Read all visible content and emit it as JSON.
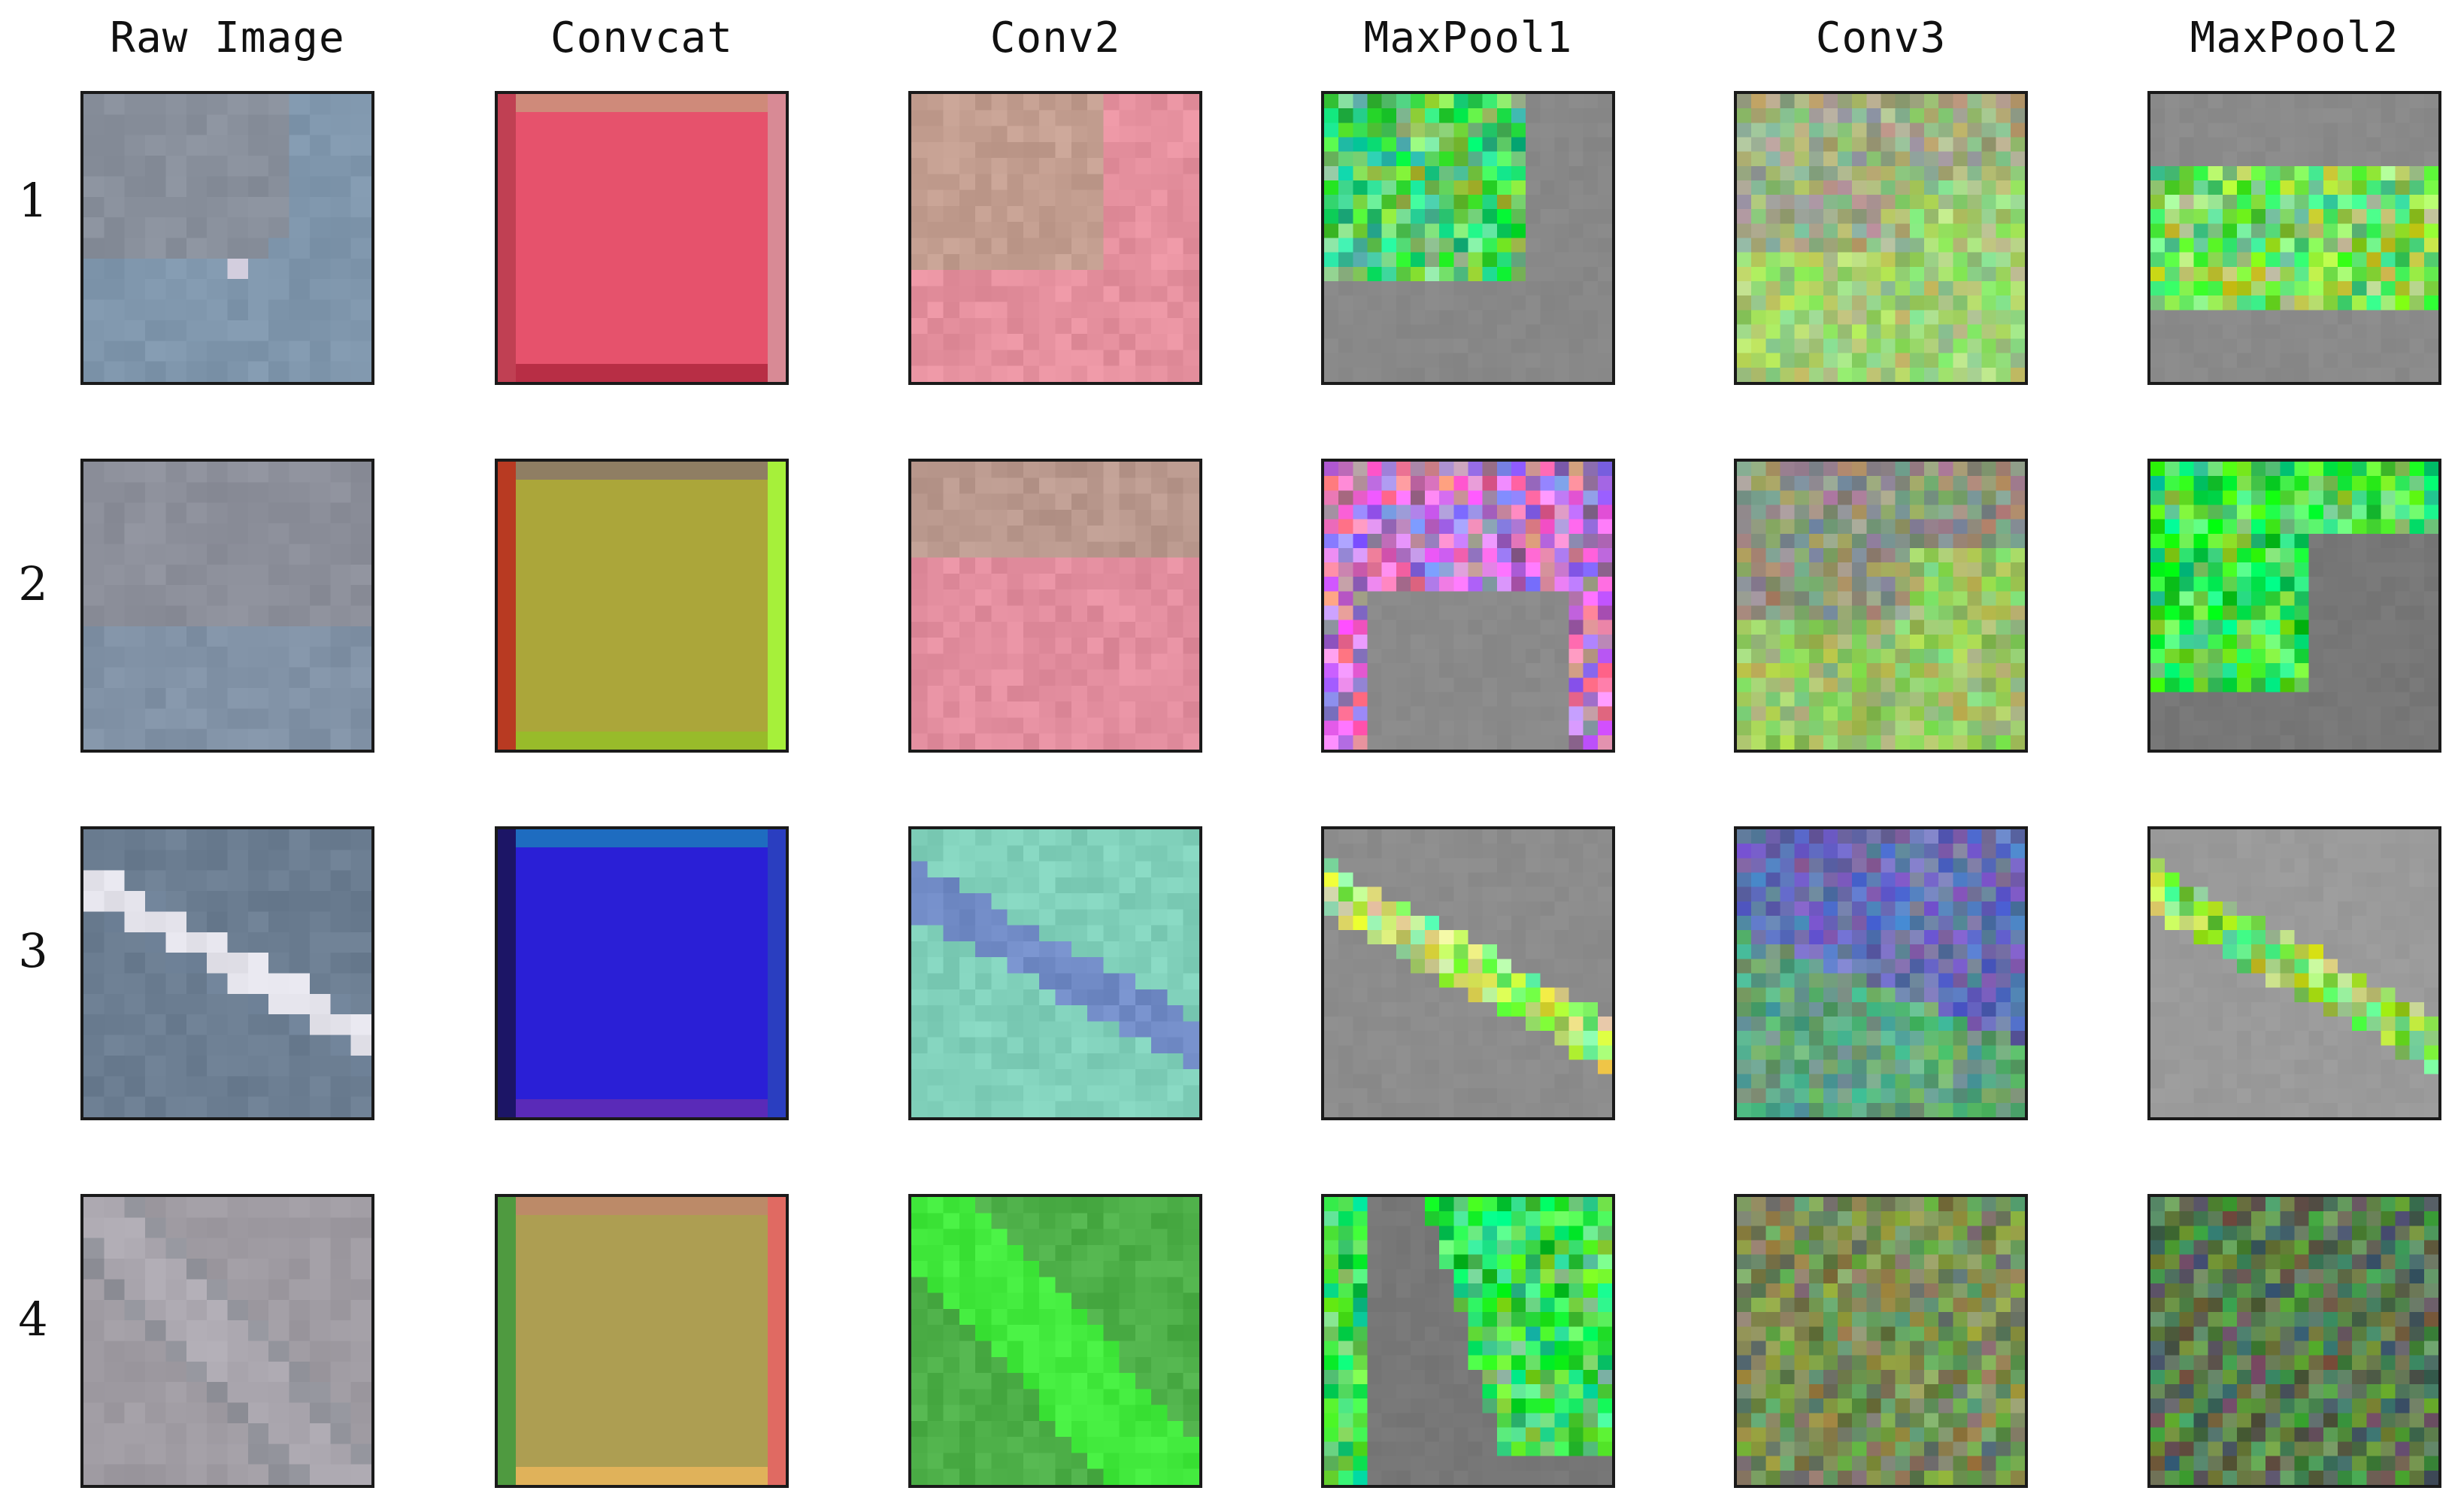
{
  "figure": {
    "columns": [
      "Raw Image",
      "Convcat",
      "Conv2",
      "MaxPool1",
      "Conv3",
      "MaxPool2"
    ],
    "rows": [
      "1",
      "2",
      "3",
      "4"
    ]
  },
  "panels": [
    [
      {
        "kind": "raw",
        "base": "#8a8d97",
        "accent": "#7d97b0",
        "highlight": "#d4cfdf",
        "pattern": "diag-right"
      },
      {
        "kind": "solid",
        "base": "#e6526c",
        "edge_left": "#c04053",
        "edge_right": "#d88a95",
        "edge_top": "#cf8a7a",
        "edge_bottom": "#b82e45"
      },
      {
        "kind": "patch",
        "base": "#bfa08e",
        "accent": "#e98ea0",
        "pattern": "corner-bottom-right"
      },
      {
        "kind": "pool",
        "base": "#888888",
        "accent": "#4fd06a",
        "pattern": "top-left"
      },
      {
        "kind": "noise",
        "base": "#9ca08c",
        "accent": "#a6e86a",
        "pattern": "bottom-band"
      },
      {
        "kind": "pool",
        "base": "#8a8a8a",
        "accent": "#7fdc5a",
        "pattern": "mid-band"
      }
    ],
    [
      {
        "kind": "raw",
        "base": "#8e8f98",
        "accent": "#7f92a8",
        "highlight": "#9da0ac",
        "pattern": "bottom-half"
      },
      {
        "kind": "solid",
        "base": "#aba63a",
        "edge_left": "#b83a22",
        "edge_right": "#a6f03a",
        "edge_top": "#8f7e63",
        "edge_bottom": "#98bb2a"
      },
      {
        "kind": "patch",
        "base": "#b59a8c",
        "accent": "#e78ca0",
        "pattern": "bottom-two-thirds"
      },
      {
        "kind": "pool",
        "base": "#8a8a8a",
        "accent": "#c67ac8",
        "pattern": "arch"
      },
      {
        "kind": "noise",
        "base": "#8c8088",
        "accent": "#9ee65a",
        "pattern": "bottom-band"
      },
      {
        "kind": "pool",
        "base": "#777777",
        "accent": "#3fdc52",
        "pattern": "top-band"
      }
    ],
    [
      {
        "kind": "raw",
        "base": "#6a7c90",
        "accent": "#6f8298",
        "highlight": "#f1eef4",
        "pattern": "streak"
      },
      {
        "kind": "solid",
        "base": "#2a1fd6",
        "edge_left": "#1c1566",
        "edge_right": "#2a3ec0",
        "edge_top": "#1e6cc0",
        "edge_bottom": "#5a2ab8"
      },
      {
        "kind": "patch",
        "base": "#82d9b8",
        "accent": "#6f82c8",
        "pattern": "streak"
      },
      {
        "kind": "pool",
        "base": "#8c8c8c",
        "accent": "#a6e86a",
        "pattern": "streak"
      },
      {
        "kind": "noise",
        "base": "#6a58c8",
        "accent": "#5ac85a",
        "pattern": "streak-dark"
      },
      {
        "kind": "pool",
        "base": "#9a9a9a",
        "accent": "#8edc5a",
        "pattern": "streak"
      }
    ],
    [
      {
        "kind": "raw",
        "base": "#a29da4",
        "accent": "#8e9098",
        "highlight": "#bab4bc",
        "pattern": "diag-left"
      },
      {
        "kind": "solid",
        "base": "#ad9e52",
        "edge_left": "#4f9a40",
        "edge_right": "#e06a62",
        "edge_top": "#bc8a68",
        "edge_bottom": "#e0b25a"
      },
      {
        "kind": "patch",
        "base": "#4fa84a",
        "accent": "#3ff03a",
        "pattern": "diag-left"
      },
      {
        "kind": "pool",
        "base": "#777777",
        "accent": "#3fd85a",
        "pattern": "diag-split"
      },
      {
        "kind": "noise",
        "base": "#6f7a58",
        "accent": "#8aa85a",
        "pattern": "diag-stripes"
      },
      {
        "kind": "noise",
        "base": "#545454",
        "accent": "#5aa84a",
        "pattern": "diag-stripes"
      }
    ]
  ]
}
